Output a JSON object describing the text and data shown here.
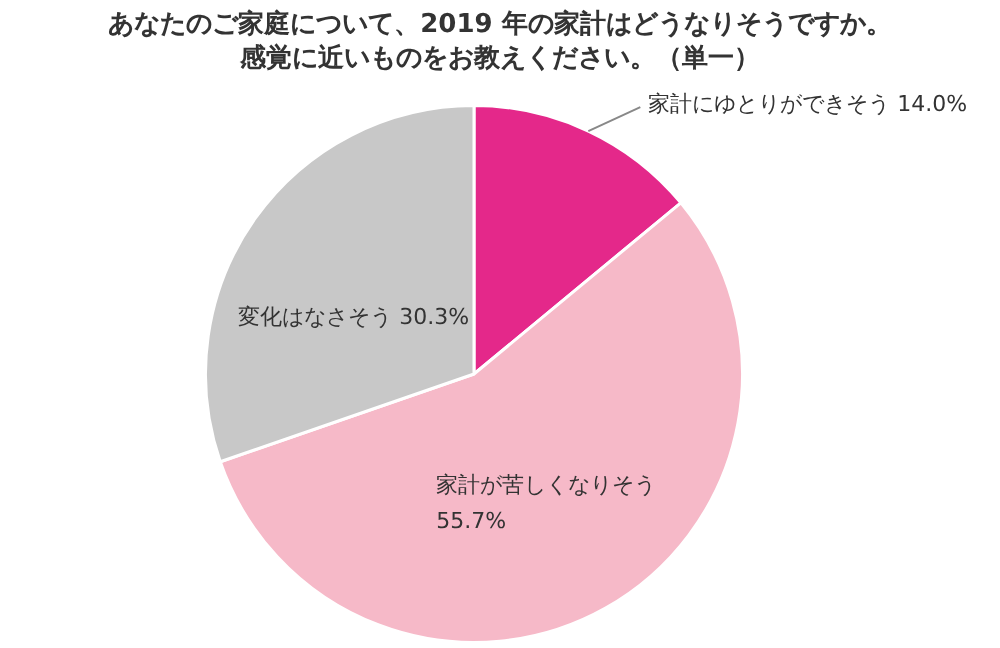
{
  "chart_data": {
    "type": "pie",
    "title": "あなたのご家庭について、2019 年の家計はどうなりそうですか。感覚に近いものをお教えください。（単一）",
    "categories": [
      "家計にゆとりができそう",
      "家計が苦しくなりそう",
      "変化はなさそう"
    ],
    "values": [
      14.0,
      55.7,
      30.3
    ],
    "colors": [
      "#e4288a",
      "#f6b9c8",
      "#c8c8c8"
    ],
    "value_labels": [
      "14.0%",
      "55.7%",
      "30.3%"
    ],
    "legend": false
  }
}
